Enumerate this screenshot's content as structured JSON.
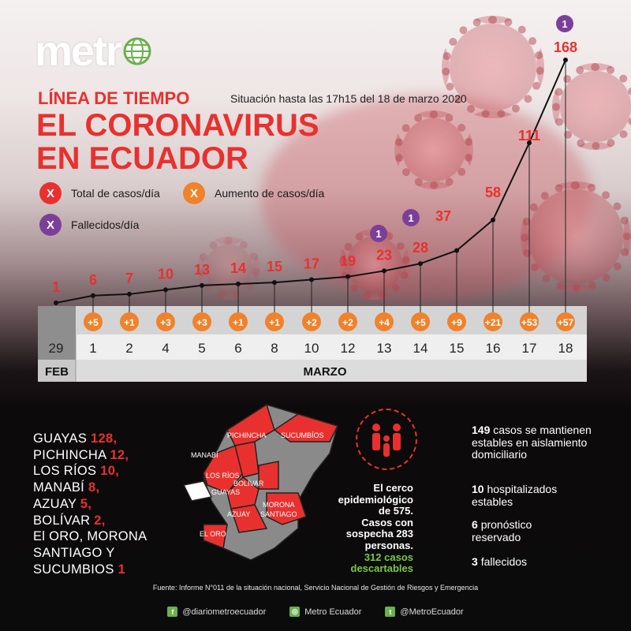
{
  "header": {
    "logo_text": "metr",
    "subtitle": "LÍNEA DE TIEMPO",
    "situacion": "Situación hasta las 17h15 del 18 de marzo 2020",
    "title_line1": "EL CORONAVIRUS",
    "title_line2": "EN ECUADOR"
  },
  "legend": {
    "total": "Total de casos/día",
    "aumento": "Aumento de casos/día",
    "fallecidos": "Fallecidos/día",
    "symbol": "X"
  },
  "colors": {
    "red": "#e8312f",
    "orange": "#f0822b",
    "purple": "#7b3f98",
    "green": "#7ac943"
  },
  "chart_data": {
    "type": "line",
    "title": "EL CORONAVIRUS EN ECUADOR",
    "months": [
      "FEB",
      "MARZO"
    ],
    "x": [
      "29",
      "1",
      "2",
      "4",
      "5",
      "6",
      "8",
      "10",
      "12",
      "13",
      "14",
      "15",
      "16",
      "17",
      "18"
    ],
    "series": [
      {
        "name": "Total de casos/día",
        "values": [
          1,
          6,
          7,
          10,
          13,
          14,
          15,
          17,
          19,
          23,
          28,
          37,
          58,
          111,
          168
        ]
      },
      {
        "name": "Aumento de casos/día",
        "values": [
          "",
          "+5",
          "+1",
          "+3",
          "+3",
          "+1",
          "+1",
          "+2",
          "+2",
          "+4",
          "+5",
          "+9",
          "+21",
          "+53",
          "+57"
        ]
      },
      {
        "name": "Fallecidos/día",
        "values": [
          null,
          null,
          null,
          null,
          null,
          null,
          null,
          null,
          null,
          1,
          1,
          null,
          null,
          null,
          1
        ]
      }
    ]
  },
  "provinces_text": [
    {
      "name": "GUAYAS",
      "num": "128",
      "sep": ","
    },
    {
      "name": "PICHINCHA",
      "num": "12",
      "sep": ","
    },
    {
      "name": "LOS RÍOS",
      "num": "10",
      "sep": ","
    },
    {
      "name": "MANABÍ",
      "num": "8",
      "sep": ","
    },
    {
      "name": "AZUAY",
      "num": "5",
      "sep": ","
    },
    {
      "name": "BOLÍVAR",
      "num": "2",
      "sep": ","
    },
    {
      "name": "El ORO, MORONA",
      "num": "",
      "sep": ""
    },
    {
      "name": "SANTIAGO Y",
      "num": "",
      "sep": ""
    },
    {
      "name": "SUCUMBIOS",
      "num": "1",
      "sep": ""
    }
  ],
  "map_labels": [
    "PICHINCHA",
    "SUCUMBÍOS",
    "MANABÍ",
    "LOS RÍOS",
    "BOLÍVAR",
    "GUAYAS",
    "MORONA",
    "SANTIAGO",
    "AZUAY",
    "EL ORO"
  ],
  "cerco": {
    "line1": "El cerco",
    "line2": "epidemiológico",
    "line3": "de 575.",
    "line4": "Casos con",
    "line5": "sospecha 283",
    "line6": "personas.",
    "green1": "312 casos",
    "green2": "descartables"
  },
  "stats": [
    {
      "bold": "149",
      "text": "casos se mantienen estables en aislamiento domiciliario"
    },
    {
      "bold": "10",
      "text": "hospitalizados estables"
    },
    {
      "bold": "6",
      "text": "pronóstico reservado"
    },
    {
      "bold": "3",
      "text": "fallecidos"
    }
  ],
  "source": "Fuente: Informe N°011 de la situación nacional, Servicio Nacional de Gestión de Riesgos y Emergencia",
  "social": [
    {
      "icon": "f",
      "label": "@diariometroecuador"
    },
    {
      "icon": "◎",
      "label": "Metro Ecuador"
    },
    {
      "icon": "t",
      "label": "@MetroEcuador"
    }
  ]
}
